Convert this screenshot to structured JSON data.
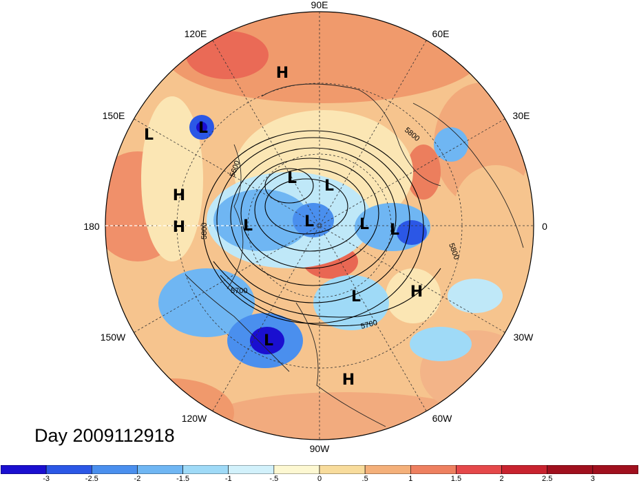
{
  "title": "Day 2009112918",
  "longitude_labels": [
    "90E",
    "60E",
    "30E",
    "0",
    "30W",
    "60W",
    "90W",
    "120W",
    "150W",
    "180",
    "150E",
    "120E"
  ],
  "contour_labels": [
    "5600",
    "5800",
    "5700",
    "5700",
    "5800",
    "5800"
  ],
  "markers": [
    "H",
    "L",
    "L",
    "H",
    "H",
    "L",
    "L",
    "L",
    "L",
    "L",
    "L",
    "L",
    "H",
    "L",
    "H"
  ],
  "colorbar": {
    "colors": [
      "#1a0fd0",
      "#2b57e6",
      "#4a8fee",
      "#6fb6f3",
      "#9fdaf7",
      "#d2f1fb",
      "#fdf8d2",
      "#f8dc9c",
      "#f4b07a",
      "#ee8060",
      "#e5484a",
      "#c8232f",
      "#a0101e"
    ],
    "ticks": [
      "-3",
      "-2.5",
      "-2",
      "-1.5",
      "-1",
      "-.5",
      "0",
      ".5",
      "1",
      "1.5",
      "2",
      "2.5",
      "3"
    ]
  }
}
